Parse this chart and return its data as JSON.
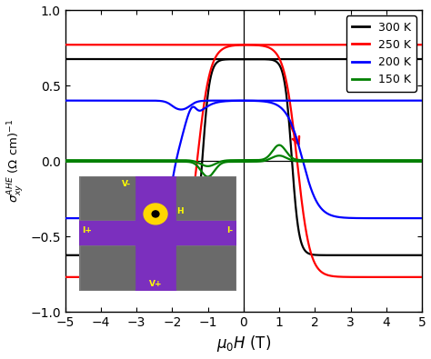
{
  "xlabel": "$\\mu_0H$ (T)",
  "ylabel": "$\\sigma_{xy}^{AHE}$ $(\\Omega$ cm$)^{-1}$",
  "xlim": [
    -5,
    5
  ],
  "ylim": [
    -1.0,
    1.0
  ],
  "xticks": [
    -5,
    -4,
    -3,
    -2,
    -1,
    0,
    1,
    2,
    3,
    4,
    5
  ],
  "yticks": [
    -1.0,
    -0.5,
    0.0,
    0.5,
    1.0
  ],
  "legend_labels": [
    "300 K",
    "250 K",
    "200 K",
    "150 K"
  ],
  "legend_colors": [
    "black",
    "red",
    "blue",
    "green"
  ],
  "background_color": "white"
}
